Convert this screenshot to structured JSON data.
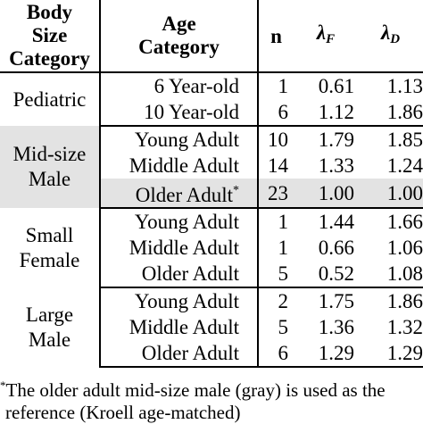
{
  "header": {
    "body_line1": "Body",
    "body_line2": "Size",
    "body_line3": "Category",
    "age_line1": "Age",
    "age_line2": "Category",
    "n": "n",
    "lambda_f_symbol": "λ",
    "lambda_f_sub": "F",
    "lambda_d_symbol": "λ",
    "lambda_d_sub": "D"
  },
  "groups": [
    {
      "label_line1": "Pediatric",
      "label_line2": "",
      "rows": [
        {
          "age": "6 Year-old",
          "n": "1",
          "lf": "0.61",
          "ld": "1.13"
        },
        {
          "age": "10 Year-old",
          "n": "6",
          "lf": "1.12",
          "ld": "1.86"
        }
      ]
    },
    {
      "label_line1": "Mid-size",
      "label_line2": "Male",
      "rows": [
        {
          "age": "Young Adult",
          "n": "10",
          "lf": "1.79",
          "ld": "1.85"
        },
        {
          "age": "Middle Adult",
          "n": "14",
          "lf": "1.33",
          "ld": "1.24"
        },
        {
          "age": "Older Adult",
          "age_mark": "*",
          "n": "23",
          "lf": "1.00",
          "ld": "1.00"
        }
      ]
    },
    {
      "label_line1": "Small",
      "label_line2": "Female",
      "rows": [
        {
          "age": "Young Adult",
          "n": "1",
          "lf": "1.44",
          "ld": "1.66"
        },
        {
          "age": "Middle Adult",
          "n": "1",
          "lf": "0.66",
          "ld": "1.06"
        },
        {
          "age": "Older Adult",
          "n": "5",
          "lf": "0.52",
          "ld": "1.08"
        }
      ]
    },
    {
      "label_line1": "Large",
      "label_line2": "Male",
      "rows": [
        {
          "age": "Young Adult",
          "n": "2",
          "lf": "1.75",
          "ld": "1.86"
        },
        {
          "age": "Middle Adult",
          "n": "5",
          "lf": "1.36",
          "ld": "1.32"
        },
        {
          "age": "Older Adult",
          "n": "6",
          "lf": "1.29",
          "ld": "1.29"
        }
      ]
    }
  ],
  "footnote": {
    "mark": "*",
    "line1": "The older adult mid-size male (gray) is used as the",
    "line2": "reference (Kroell age-matched)"
  },
  "colors": {
    "shading": "#e3e3e3",
    "rules": "#000000"
  }
}
